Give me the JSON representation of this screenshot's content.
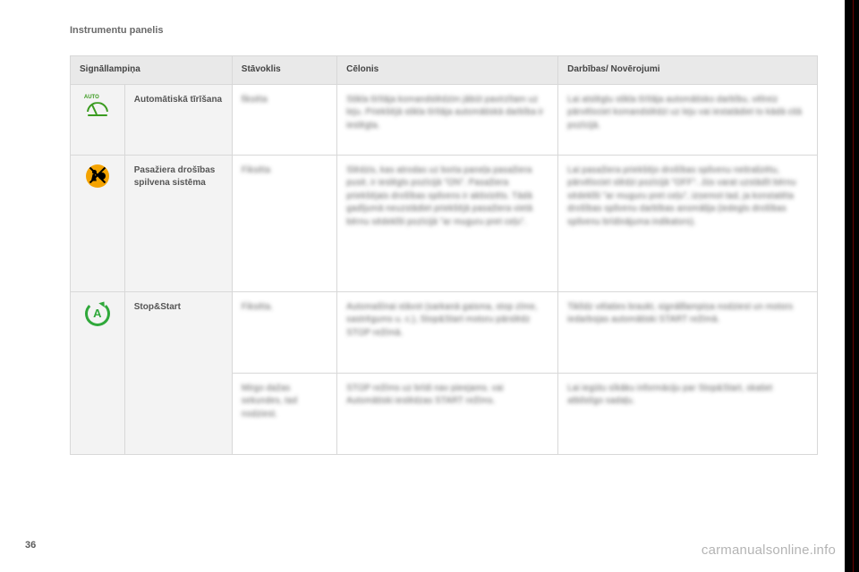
{
  "page_title": "Instrumentu panelis",
  "page_number": "36",
  "watermark": "carmanualsonline.info",
  "headers": {
    "col1": "Signāllampiņa",
    "col2": "Stāvoklis",
    "col3": "Cēlonis",
    "col4": "Darbības/ Novērojumi"
  },
  "rows": [
    {
      "icon": "wiper-auto",
      "name": "Automātiskā tīrīšana",
      "state": "fiksēta",
      "cause": "Stikla tīrītāja komandslēdzim jābūt pavirzītam uz leju. Priekšējā stikla tīrītāja automātiskā darbība ir ieslēgta.",
      "action": "Lai atslēgtu stikla tīrītāja automātisko darbību, vēlreiz pārvēlociet komandslēdzi uz leju vai iestatādiet to kādā citā pozīcijā."
    },
    {
      "icon": "airbag-off",
      "name": "Pasažiera drošības spilvena sistēma",
      "state": "Fiksēta",
      "cause": "Slēdzis, kas atrodas uz borta paneļa pasažiera pusē, ir ieslēgts pozīcijā \"ON\". Pasažiera priekšējais drošības spilvens ir aktivizēts. Tādā gadījumā neuzstādiet priekšējā pasažiera vietā bērnu sēdeklīti pozīcijā \"ar muguru pret ceļu\".",
      "action": "Lai pasažiera priekšējo drošības spilvenu neitralizētu, pārvēlociet slēdzi pozīcijā \"OFF\". Jūs varat uzstādīt bērnu sēdeklīti \"ar muguru pret ceļu\", izņemot tad, ja konstatēta drošības spilvenu darbības anomālija (iedegts drošības spilvenu brīdinājuma indikators)."
    },
    {
      "icon": "stop-start",
      "name": "Stop&Start",
      "state": "Fiksēta.",
      "cause": "Automašīnai stāvot (sarkanā gaisma, stop zīme, sastrēgums u. c.), Stop&Start motoru pārslēdz STOP režīmā.",
      "action": "Tiklīdz vēlaties braukt, signālllampiņa nodziest un motors iedarbojas automātiski START režīmā."
    },
    {
      "state": "Mirgo dažas sekundes, tad nodziest.",
      "cause": "STOP režīms uz brīdi nav pieejams. vai Automātiski ieslēdzas START režīms.",
      "action": "Lai iegūtu sīkāku informāciju par Stop&Start, skatiet atbilstīgo sadaļu."
    }
  ]
}
